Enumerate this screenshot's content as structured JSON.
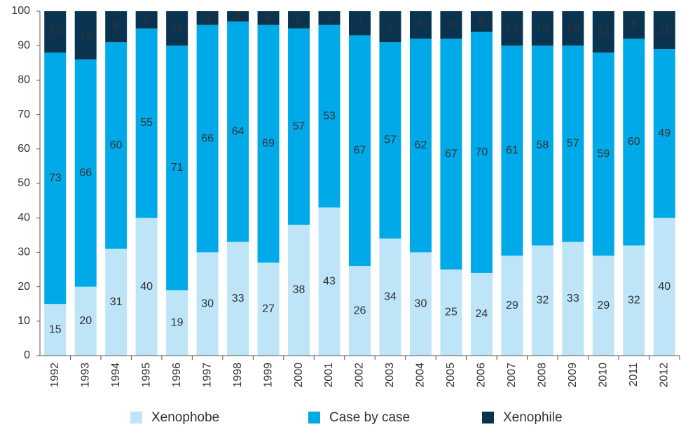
{
  "chart_data": {
    "type": "stacked_bar",
    "categories": [
      "1992",
      "1993",
      "1994",
      "1995",
      "1996",
      "1997",
      "1998",
      "1999",
      "2000",
      "2001",
      "2002",
      "2003",
      "2004",
      "2005",
      "2006",
      "2007",
      "2008",
      "2009",
      "2010",
      "2011",
      "2012"
    ],
    "series": [
      {
        "name": "Xenophobe",
        "color": "#bde5f7",
        "values": [
          15,
          20,
          31,
          40,
          19,
          30,
          33,
          27,
          38,
          43,
          26,
          34,
          30,
          25,
          24,
          29,
          32,
          33,
          29,
          32,
          40
        ]
      },
      {
        "name": "Case by case",
        "color": "#00a9e8",
        "values": [
          73,
          66,
          60,
          55,
          71,
          66,
          64,
          69,
          57,
          53,
          67,
          57,
          62,
          67,
          70,
          61,
          58,
          57,
          59,
          60,
          49
        ]
      },
      {
        "name": "Xenophile",
        "color": "#0a3350",
        "values": [
          12,
          14,
          9,
          5,
          10,
          4,
          3,
          4,
          5,
          4,
          7,
          9,
          8,
          8,
          6,
          10,
          10,
          10,
          12,
          8,
          11
        ]
      }
    ],
    "ylim": [
      0,
      100
    ],
    "yticks": [
      0,
      10,
      20,
      30,
      40,
      50,
      60,
      70,
      80,
      90,
      100
    ]
  }
}
